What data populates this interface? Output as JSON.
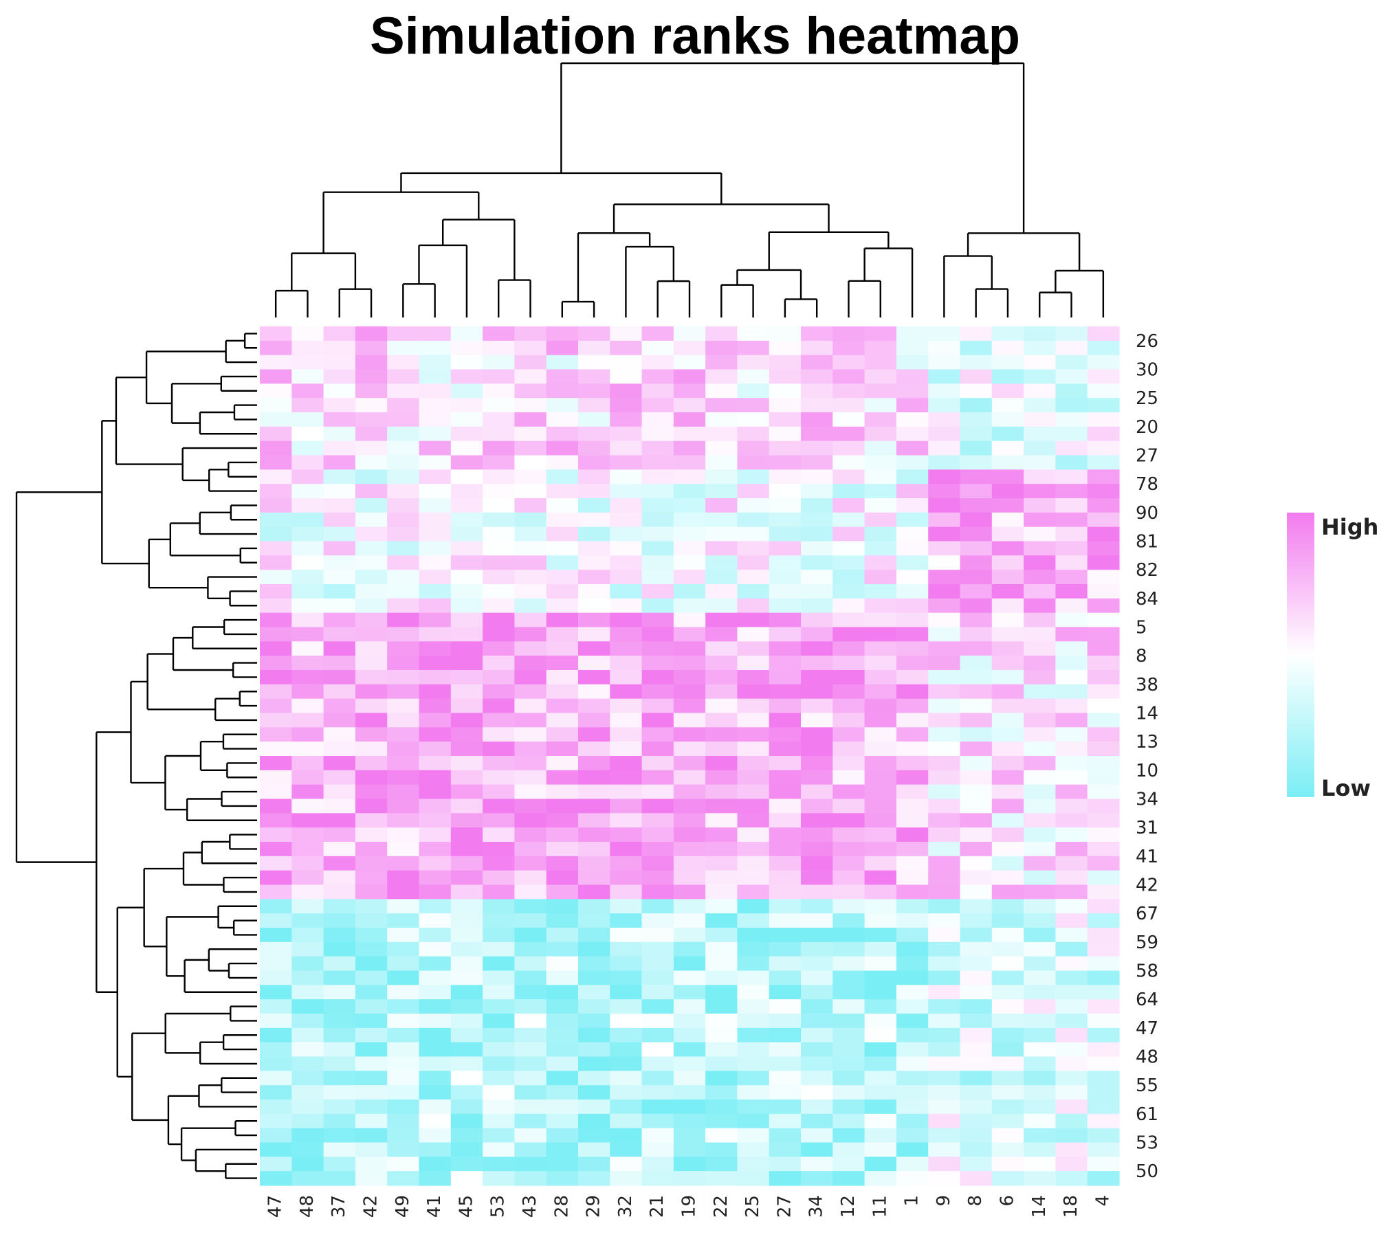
{
  "chart_data": {
    "type": "heatmap",
    "title": "Simulation ranks heatmap",
    "column_labels": [
      "47",
      "48",
      "37",
      "42",
      "49",
      "41",
      "45",
      "53",
      "43",
      "28",
      "29",
      "32",
      "21",
      "19",
      "22",
      "25",
      "27",
      "34",
      "12",
      "11",
      "1",
      "9",
      "8",
      "6",
      "14",
      "18",
      "4"
    ],
    "row_labels": [
      "26",
      "30",
      "25",
      "20",
      "27",
      "78",
      "90",
      "81",
      "82",
      "84",
      "5",
      "8",
      "38",
      "14",
      "13",
      "10",
      "34",
      "31",
      "41",
      "42",
      "67",
      "59",
      "58",
      "64",
      "47",
      "48",
      "55",
      "61",
      "53",
      "50"
    ],
    "legend": {
      "high_label": "High",
      "low_label": "Low",
      "placement": "right"
    },
    "colors": {
      "high": "#f27bef",
      "mid": "#ffffff",
      "low": "#7aeef5"
    },
    "grid": false,
    "row_dendrogram": true,
    "column_dendrogram": true
  }
}
